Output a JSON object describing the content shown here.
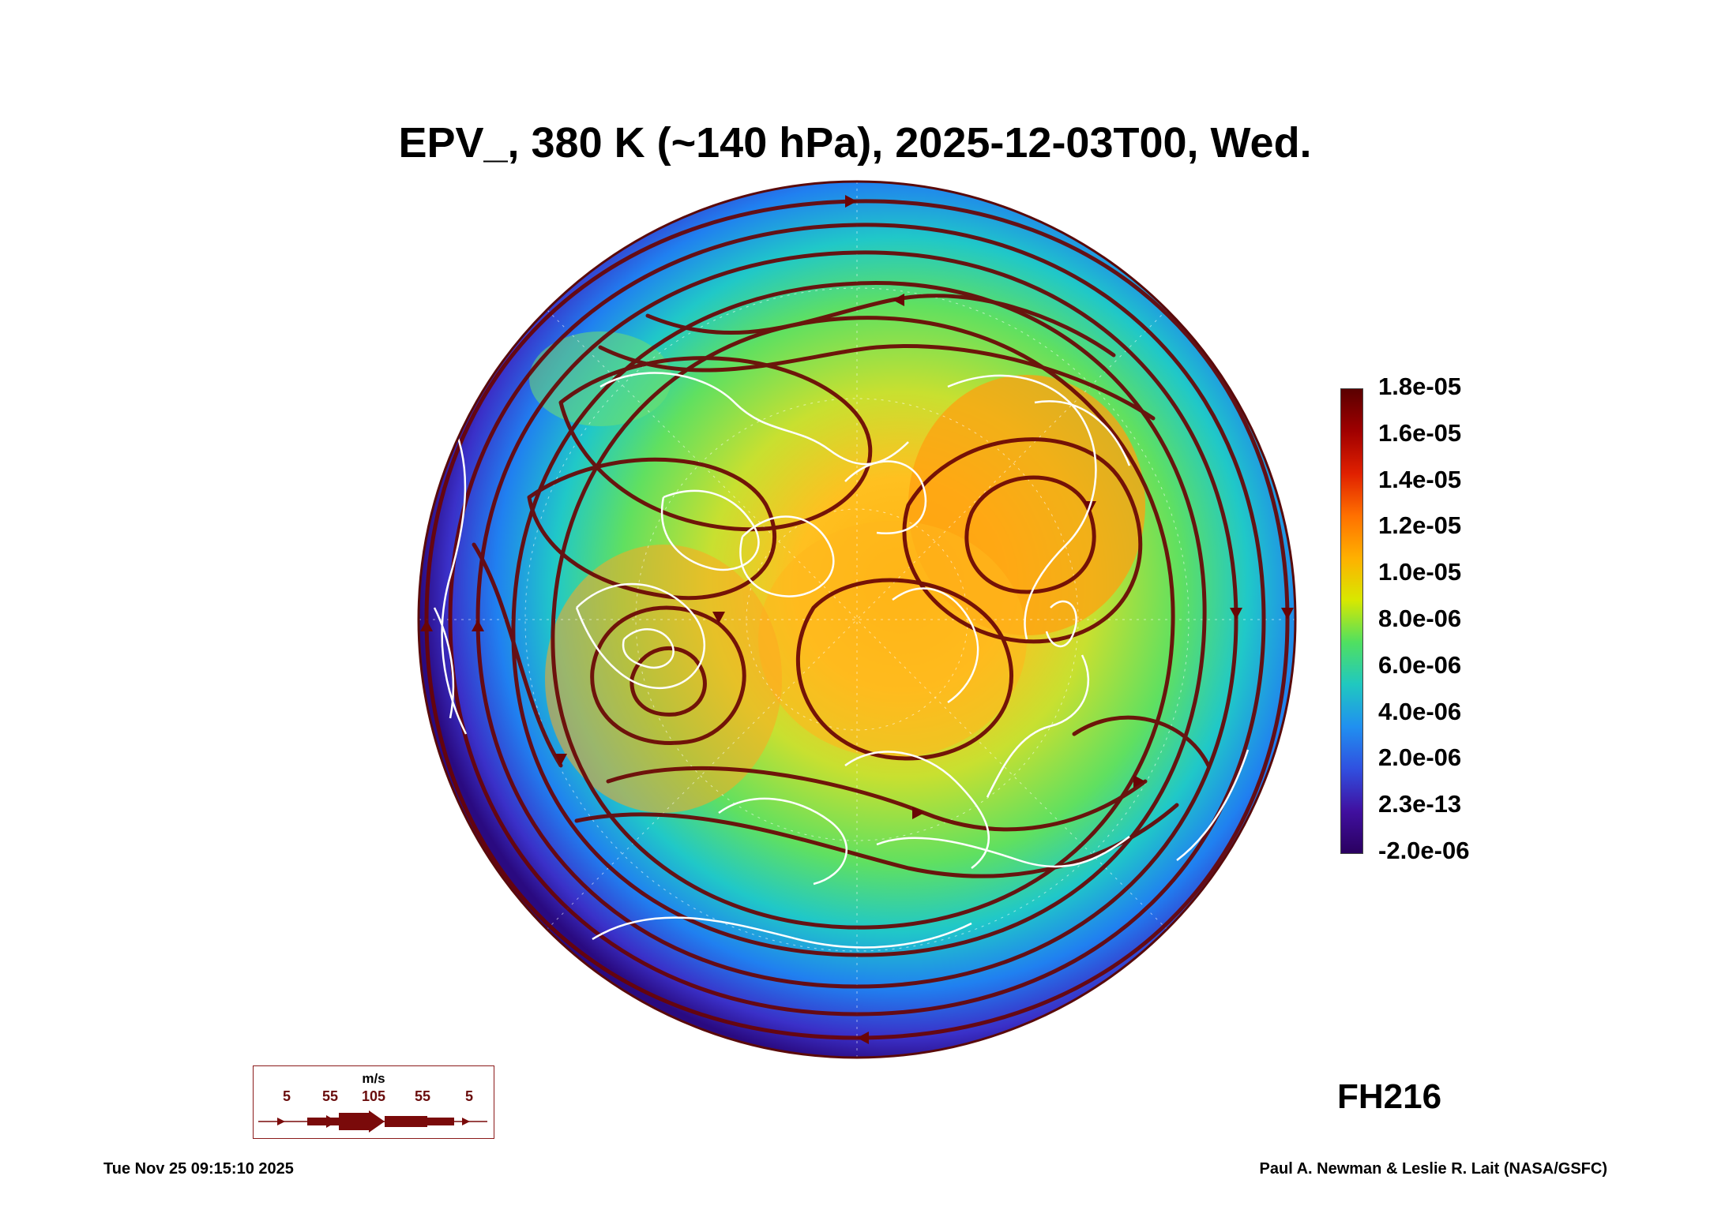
{
  "title": "EPV_, 380 K (~140 hPa), 2025-12-03T00, Wed.",
  "colorbar": {
    "labels": [
      "1.8e-05",
      "1.6e-05",
      "1.4e-05",
      "1.2e-05",
      "1.0e-05",
      "8.0e-06",
      "6.0e-06",
      "4.0e-06",
      "2.0e-06",
      "2.3e-13",
      "-2.0e-06"
    ],
    "colors": [
      "#5a0000",
      "#a00000",
      "#e02000",
      "#ff7000",
      "#ffb000",
      "#d8e800",
      "#50e060",
      "#20c8c0",
      "#2090f0",
      "#3050e0",
      "#4010a0",
      "#2a0060"
    ]
  },
  "forecast_hour": "FH216",
  "wind_legend": {
    "unit": "m/s",
    "scale": [
      "5",
      "55",
      "105",
      "55",
      "5"
    ],
    "color": "#7a0a0a"
  },
  "footer": {
    "timestamp": "Tue Nov 25 09:15:10 2025",
    "credit": "Paul A. Newman & Leslie R. Lait (NASA/GSFC)"
  },
  "map": {
    "projection": "orthographic-north-polar",
    "field": "EPV_",
    "overlay": [
      "streamlines",
      "coastlines"
    ],
    "colors": {
      "streamline": "#6a0505",
      "coastline": "#ffffff",
      "outer": "#3a1090",
      "mid": "#18b4d8",
      "inner": "#8ee050",
      "core": "#ffb010"
    }
  }
}
